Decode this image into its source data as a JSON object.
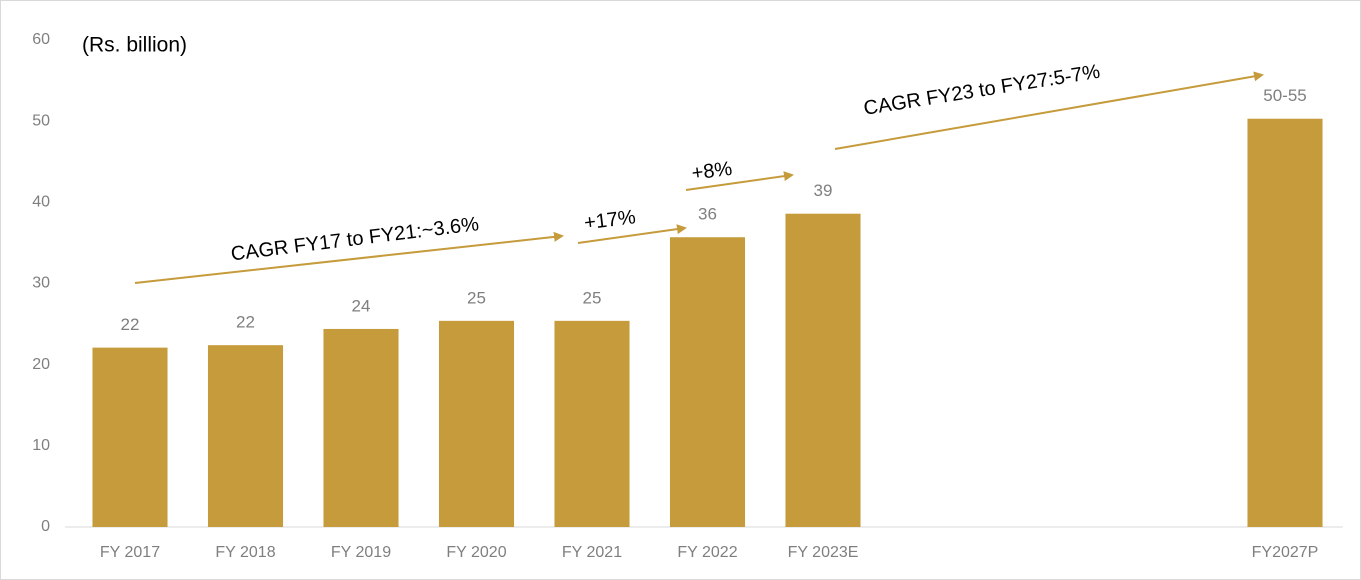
{
  "chart_data": {
    "type": "bar",
    "unit_label": "(Rs. billion)",
    "categories": [
      "FY 2017",
      "FY 2018",
      "FY 2019",
      "FY 2020",
      "FY 2021",
      "FY 2022",
      "FY 2023E",
      null,
      null,
      null,
      "FY2027P"
    ],
    "values": [
      22.1,
      22.4,
      24.4,
      25.4,
      25.4,
      35.7,
      38.6,
      null,
      null,
      null,
      50.3
    ],
    "value_labels": [
      "22",
      "22",
      "24",
      "25",
      "25",
      "36",
      "39",
      null,
      null,
      null,
      "50-55"
    ],
    "color": "#c59b3b",
    "ylim": [
      0,
      60
    ],
    "yticks": [
      0,
      10,
      20,
      30,
      40,
      50,
      60
    ],
    "grid": false,
    "annotations": [
      "CAGR FY17 to FY21:~3.6%",
      "+17%",
      "+8%",
      "CAGR FY23 to FY27:5-7%"
    ]
  }
}
